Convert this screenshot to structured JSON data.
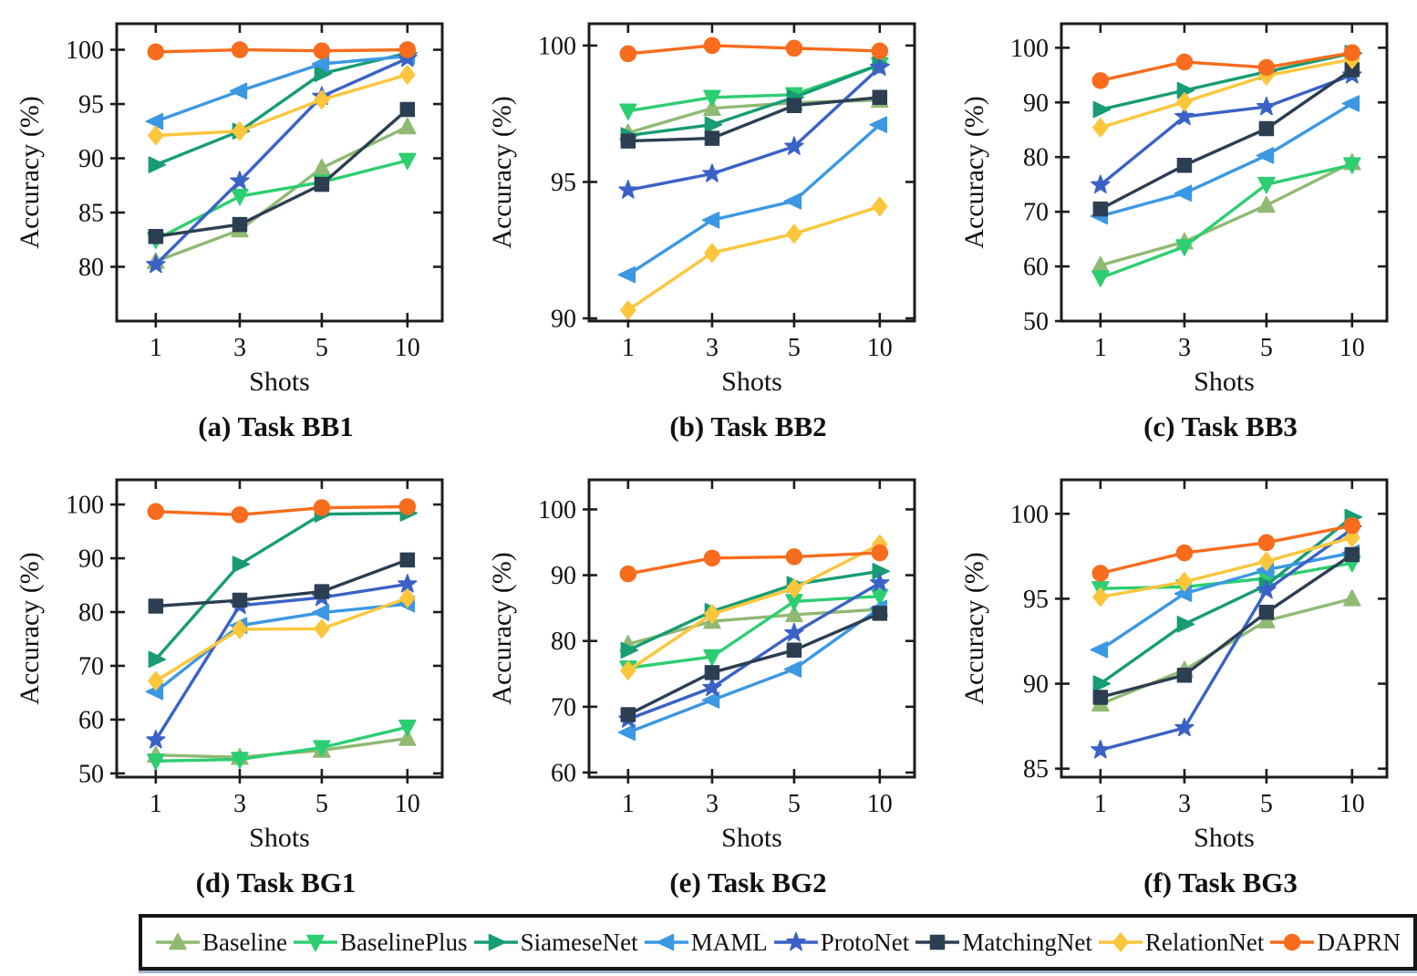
{
  "figure": {
    "xlabel": "Shots",
    "ylabel": "Accuracy (%)",
    "shots": [
      1,
      3,
      5,
      10
    ],
    "axis_color": "#1c1c1c"
  },
  "series_meta": [
    {
      "name": "Baseline",
      "color": "#90b973",
      "marker": "triangle-up"
    },
    {
      "name": "BaselinePlus",
      "color": "#2dce71",
      "marker": "triangle-down"
    },
    {
      "name": "SiameseNet",
      "color": "#179c74",
      "marker": "triangle-right"
    },
    {
      "name": "MAML",
      "color": "#3b98e2",
      "marker": "triangle-left"
    },
    {
      "name": "ProtoNet",
      "color": "#3a62c6",
      "marker": "star"
    },
    {
      "name": "MatchingNet",
      "color": "#2c3e52",
      "marker": "square"
    },
    {
      "name": "RelationNet",
      "color": "#fcc63c",
      "marker": "diamond"
    },
    {
      "name": "DAPRN",
      "color": "#f76c1d",
      "marker": "circle"
    }
  ],
  "chart_data": [
    {
      "type": "line",
      "title": "(a) Task BB1",
      "xlabel": "Shots",
      "ylabel": "Accuracy (%)",
      "x": [
        1,
        3,
        5,
        10
      ],
      "ylim": [
        75.0,
        102.4
      ],
      "yticks": [
        80,
        85,
        90,
        95,
        100
      ],
      "series": [
        {
          "name": "Baseline",
          "values": [
            80.5,
            83.4,
            89.1,
            92.9
          ]
        },
        {
          "name": "BaselinePlus",
          "values": [
            82.5,
            86.5,
            87.8,
            89.8
          ]
        },
        {
          "name": "SiameseNet",
          "values": [
            89.4,
            92.5,
            97.8,
            99.7
          ]
        },
        {
          "name": "MAML",
          "values": [
            93.4,
            96.2,
            98.7,
            99.4
          ]
        },
        {
          "name": "ProtoNet",
          "values": [
            80.2,
            87.9,
            95.7,
            99.2
          ]
        },
        {
          "name": "MatchingNet",
          "values": [
            82.8,
            83.9,
            87.6,
            94.5
          ]
        },
        {
          "name": "RelationNet",
          "values": [
            92.1,
            92.5,
            95.4,
            97.7
          ]
        },
        {
          "name": "DAPRN",
          "values": [
            99.8,
            100.0,
            99.9,
            100.0
          ]
        }
      ]
    },
    {
      "type": "line",
      "title": "(b) Task BB2",
      "xlabel": "Shots",
      "ylabel": "Accuracy (%)",
      "x": [
        1,
        3,
        5,
        10
      ],
      "ylim": [
        89.9,
        100.8
      ],
      "yticks": [
        90,
        95,
        100
      ],
      "series": [
        {
          "name": "Baseline",
          "values": [
            96.8,
            97.7,
            97.9,
            98.0
          ]
        },
        {
          "name": "BaselinePlus",
          "values": [
            97.6,
            98.1,
            98.2,
            99.3
          ]
        },
        {
          "name": "SiameseNet",
          "values": [
            96.7,
            97.1,
            98.1,
            99.3
          ]
        },
        {
          "name": "MAML",
          "values": [
            91.6,
            93.6,
            94.3,
            97.1
          ]
        },
        {
          "name": "ProtoNet",
          "values": [
            94.7,
            95.3,
            96.3,
            99.2
          ]
        },
        {
          "name": "MatchingNet",
          "values": [
            96.5,
            96.6,
            97.8,
            98.1
          ]
        },
        {
          "name": "RelationNet",
          "values": [
            90.3,
            92.4,
            93.1,
            94.1
          ]
        },
        {
          "name": "DAPRN",
          "values": [
            99.7,
            100.0,
            99.9,
            99.8
          ]
        }
      ]
    },
    {
      "type": "line",
      "title": "(c) Task BB3",
      "xlabel": "Shots",
      "ylabel": "Accuracy (%)",
      "x": [
        1,
        3,
        5,
        10
      ],
      "ylim": [
        50.0,
        104.4
      ],
      "yticks": [
        50,
        60,
        70,
        80,
        90,
        100
      ],
      "series": [
        {
          "name": "Baseline",
          "values": [
            60.2,
            64.5,
            71.2,
            79.0
          ]
        },
        {
          "name": "BaselinePlus",
          "values": [
            57.9,
            63.6,
            75.0,
            78.6
          ]
        },
        {
          "name": "SiameseNet",
          "values": [
            88.7,
            92.2,
            95.6,
            99.0
          ]
        },
        {
          "name": "MAML",
          "values": [
            69.2,
            73.4,
            80.3,
            89.8
          ]
        },
        {
          "name": "ProtoNet",
          "values": [
            74.9,
            87.4,
            89.2,
            95.0
          ]
        },
        {
          "name": "MatchingNet",
          "values": [
            70.5,
            78.5,
            85.2,
            96.0
          ]
        },
        {
          "name": "RelationNet",
          "values": [
            85.4,
            90.1,
            94.9,
            97.9
          ]
        },
        {
          "name": "DAPRN",
          "values": [
            94.0,
            97.4,
            96.4,
            99.1
          ]
        }
      ]
    },
    {
      "type": "line",
      "title": "(d) Task BG1",
      "xlabel": "Shots",
      "ylabel": "Accuracy (%)",
      "x": [
        1,
        3,
        5,
        10
      ],
      "ylim": [
        49.3,
        104.6
      ],
      "yticks": [
        50,
        60,
        70,
        80,
        90,
        100
      ],
      "series": [
        {
          "name": "Baseline",
          "values": [
            53.4,
            53.0,
            54.3,
            56.5
          ]
        },
        {
          "name": "BaselinePlus",
          "values": [
            52.3,
            52.6,
            54.8,
            58.6
          ]
        },
        {
          "name": "SiameseNet",
          "values": [
            71.2,
            88.9,
            98.2,
            98.4
          ]
        },
        {
          "name": "MAML",
          "values": [
            65.2,
            77.5,
            79.9,
            81.5
          ]
        },
        {
          "name": "ProtoNet",
          "values": [
            56.2,
            81.2,
            82.7,
            85.2
          ]
        },
        {
          "name": "MatchingNet",
          "values": [
            81.1,
            82.2,
            83.8,
            89.7
          ]
        },
        {
          "name": "RelationNet",
          "values": [
            67.2,
            76.8,
            76.9,
            82.6
          ]
        },
        {
          "name": "DAPRN",
          "values": [
            98.7,
            98.1,
            99.4,
            99.6
          ]
        }
      ]
    },
    {
      "type": "line",
      "title": "(e) Task BG2",
      "xlabel": "Shots",
      "ylabel": "Accuracy (%)",
      "x": [
        1,
        3,
        5,
        10
      ],
      "ylim": [
        59.3,
        104.5
      ],
      "yticks": [
        60,
        70,
        80,
        90,
        100
      ],
      "series": [
        {
          "name": "Baseline",
          "values": [
            79.5,
            83.0,
            84.0,
            84.8
          ]
        },
        {
          "name": "BaselinePlus",
          "values": [
            75.9,
            77.6,
            86.0,
            86.8
          ]
        },
        {
          "name": "SiameseNet",
          "values": [
            78.6,
            84.5,
            88.6,
            90.6
          ]
        },
        {
          "name": "MAML",
          "values": [
            66.1,
            71.0,
            75.7,
            85.0
          ]
        },
        {
          "name": "ProtoNet",
          "values": [
            68.1,
            72.9,
            81.2,
            88.8
          ]
        },
        {
          "name": "MatchingNet",
          "values": [
            68.8,
            75.2,
            78.6,
            84.2
          ]
        },
        {
          "name": "RelationNet",
          "values": [
            75.5,
            84.1,
            88.0,
            94.7
          ]
        },
        {
          "name": "DAPRN",
          "values": [
            90.2,
            92.6,
            92.8,
            93.4
          ]
        }
      ]
    },
    {
      "type": "line",
      "title": "(f) Task BG3",
      "xlabel": "Shots",
      "ylabel": "Accuracy (%)",
      "x": [
        1,
        3,
        5,
        10
      ],
      "ylim": [
        84.5,
        102.0
      ],
      "yticks": [
        85,
        90,
        95,
        100
      ],
      "series": [
        {
          "name": "Baseline",
          "values": [
            88.8,
            90.8,
            93.7,
            95.0
          ]
        },
        {
          "name": "BaselinePlus",
          "values": [
            95.6,
            95.7,
            96.2,
            97.1
          ]
        },
        {
          "name": "SiameseNet",
          "values": [
            90.0,
            93.5,
            95.8,
            99.8
          ]
        },
        {
          "name": "MAML",
          "values": [
            92.0,
            95.3,
            96.7,
            97.7
          ]
        },
        {
          "name": "ProtoNet",
          "values": [
            86.1,
            87.4,
            95.5,
            99.1
          ]
        },
        {
          "name": "MatchingNet",
          "values": [
            89.2,
            90.5,
            94.2,
            97.6
          ]
        },
        {
          "name": "RelationNet",
          "values": [
            95.1,
            96.0,
            97.2,
            98.6
          ]
        },
        {
          "name": "DAPRN",
          "values": [
            96.5,
            97.7,
            98.3,
            99.3
          ]
        }
      ]
    }
  ],
  "legend": {
    "labels": [
      "Baseline",
      "BaselinePlus",
      "SiameseNet",
      "MAML",
      "ProtoNet",
      "MatchingNet",
      "RelationNet",
      "DAPRN"
    ]
  }
}
